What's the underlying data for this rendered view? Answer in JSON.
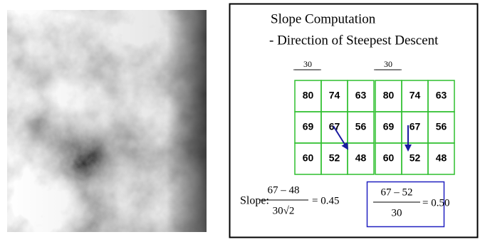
{
  "slide": {
    "title": "Slope Computation",
    "subtitle": "- Direction of Steepest Descent",
    "grids": [
      {
        "spacing_label": "30",
        "rows": [
          [
            80,
            74,
            63
          ],
          [
            69,
            67,
            56
          ],
          [
            60,
            52,
            48
          ]
        ]
      },
      {
        "spacing_label": "30",
        "rows": [
          [
            80,
            74,
            63
          ],
          [
            69,
            67,
            56
          ],
          [
            60,
            52,
            48
          ]
        ]
      }
    ],
    "formula_left": {
      "label": "Slope:",
      "numerator": "67 – 48",
      "denominator": "30√2",
      "result": "= 0.45"
    },
    "formula_right": {
      "numerator": "67 – 52",
      "denominator": "30",
      "result": "= 0.50"
    }
  }
}
